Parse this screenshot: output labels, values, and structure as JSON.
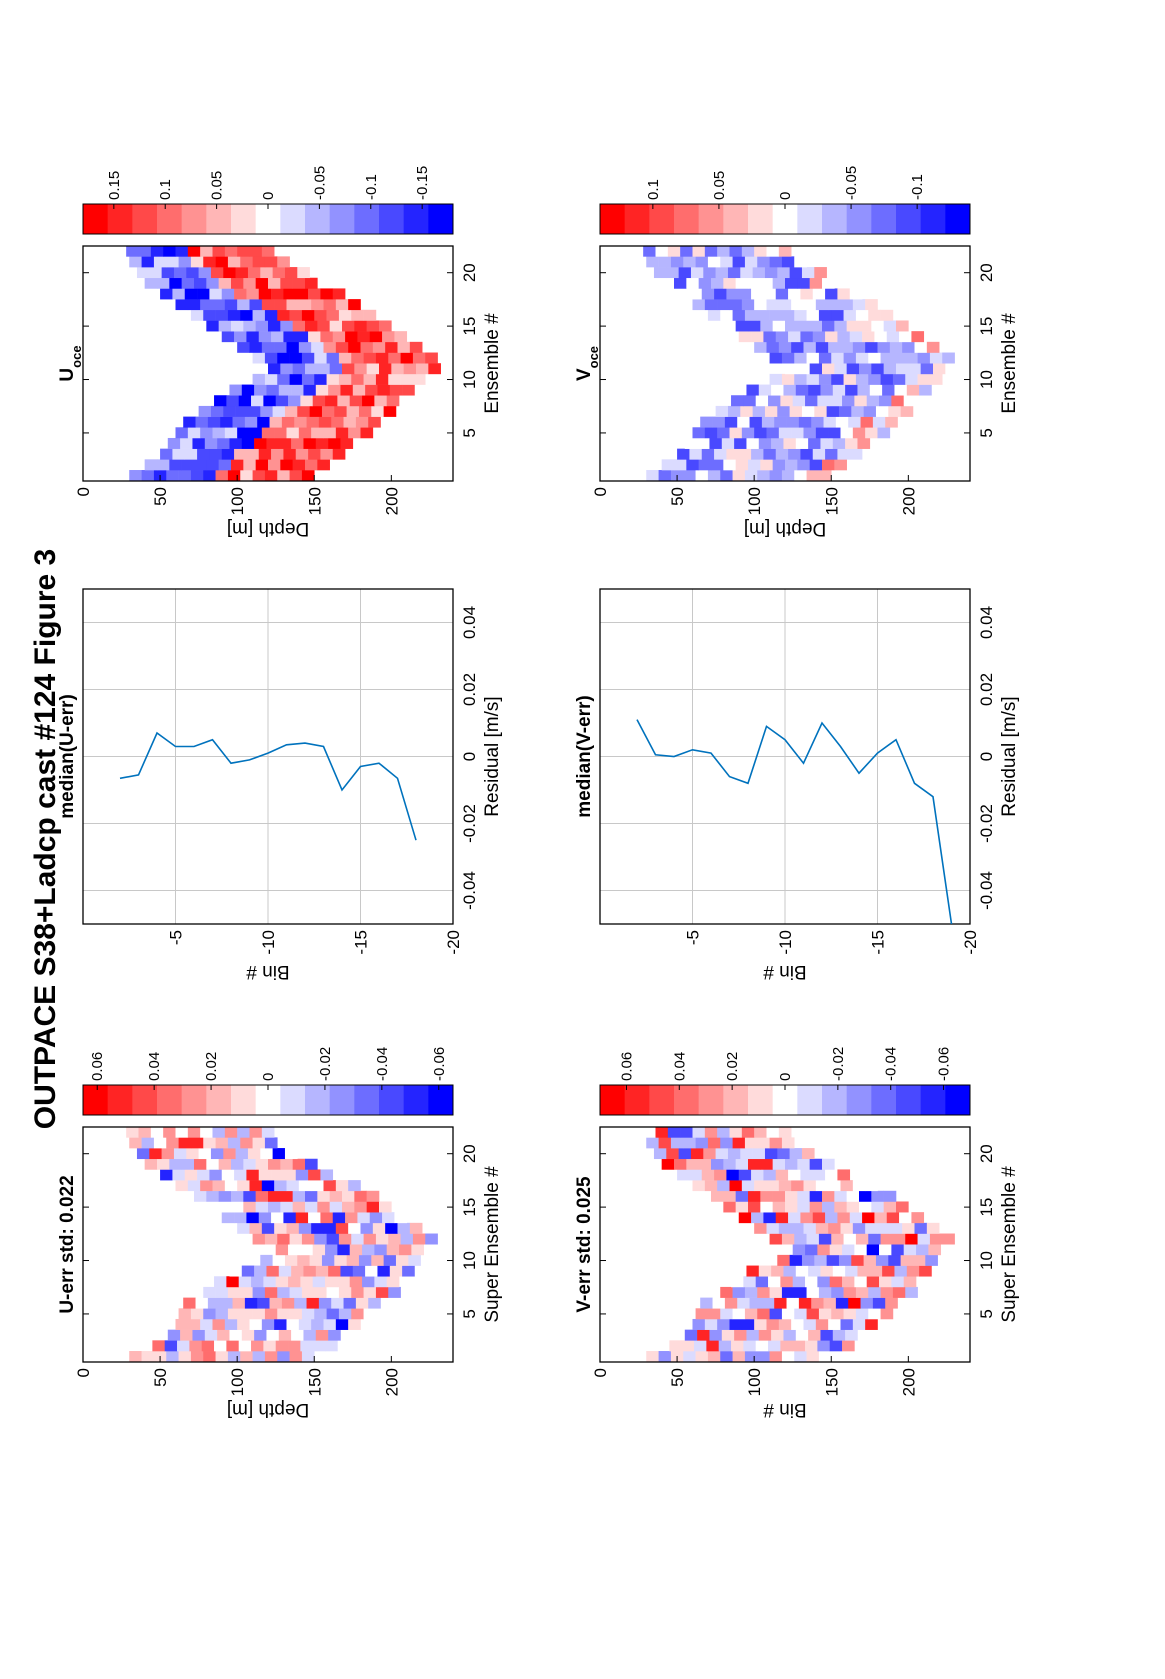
{
  "figure": {
    "title": "OUTPACE S38+Ladcp cast #124  Figure 3"
  },
  "colors": {
    "red_end": "#ff0000",
    "blue_end": "#0000ff",
    "line": "#0072bd",
    "grid": "#c8c8c8"
  },
  "chart_data": [
    {
      "type": "heatmap",
      "name": "U-err",
      "title": "U-err std: 0.022",
      "xlabel": "Super Ensemble #",
      "ylabel": "Depth [m]",
      "xlim": [
        0.5,
        22.5
      ],
      "ylim": [
        0,
        240
      ],
      "xticks": [
        "5",
        "10",
        "15",
        "20"
      ],
      "yticks": [
        "0",
        "50",
        "100",
        "150",
        "200"
      ],
      "colorbar": {
        "min": -0.065,
        "max": 0.065,
        "ticks": [
          "0.06",
          "0.04",
          "0.02",
          "0",
          "-0.02",
          "-0.04",
          "-0.06"
        ]
      },
      "depth_profile": {
        "top": [
          30,
          45,
          55,
          60,
          62,
          65,
          78,
          85,
          95,
          115,
          125,
          110,
          100,
          90,
          80,
          72,
          60,
          50,
          40,
          35,
          30,
          28
        ],
        "bottom": [
          150,
          160,
          165,
          175,
          185,
          190,
          200,
          205,
          210,
          215,
          220,
          225,
          215,
          205,
          195,
          185,
          175,
          160,
          145,
          135,
          125,
          120
        ]
      },
      "std": 0.022
    },
    {
      "type": "line",
      "name": "median(U-err)",
      "title": "median(U-err)",
      "xlabel": "Residual [m/s]",
      "ylabel": "Bin #",
      "xlim": [
        -0.05,
        0.05
      ],
      "ylim": [
        -20,
        0
      ],
      "xticks": [
        "-0.04",
        "-0.02",
        "0",
        "0.02",
        "0.04"
      ],
      "yticks": [
        "-5",
        "-10",
        "-15",
        "-20"
      ],
      "series": [
        {
          "x": [
            -0.0065,
            -0.0055,
            0.007,
            0.003,
            0.003,
            0.005,
            -0.002,
            -0.001,
            0.001,
            0.0035,
            0.004,
            0.003,
            -0.01,
            -0.003,
            -0.002,
            -0.0065,
            -0.025
          ],
          "y": [
            -2,
            -3,
            -4,
            -5,
            -6,
            -7,
            -8,
            -9,
            -10,
            -11,
            -12,
            -13,
            -14,
            -15,
            -16,
            -17,
            -18
          ]
        }
      ]
    },
    {
      "type": "heatmap",
      "name": "Uoce",
      "title": "U",
      "title_sub": "oce",
      "xlabel": "Ensemble #",
      "ylabel": "Depth [m]",
      "xlim": [
        0.5,
        22.5
      ],
      "ylim": [
        0,
        240
      ],
      "xticks": [
        "5",
        "10",
        "15",
        "20"
      ],
      "yticks": [
        "0",
        "50",
        "100",
        "150",
        "200"
      ],
      "colorbar": {
        "min": -0.18,
        "max": 0.18,
        "ticks": [
          "0.15",
          "0.1",
          "0.05",
          "0",
          "-0.05",
          "-0.1",
          "-0.15"
        ]
      },
      "depth_profile": {
        "top": [
          30,
          40,
          50,
          55,
          60,
          65,
          75,
          85,
          95,
          110,
          120,
          110,
          100,
          90,
          80,
          70,
          60,
          50,
          40,
          35,
          30,
          28
        ],
        "bottom": [
          150,
          160,
          165,
          175,
          185,
          190,
          200,
          205,
          212,
          220,
          225,
          228,
          220,
          210,
          200,
          190,
          180,
          165,
          150,
          140,
          128,
          120
        ]
      }
    },
    {
      "type": "heatmap",
      "name": "V-err",
      "title": "V-err std: 0.025",
      "xlabel": "Super Ensemble #",
      "ylabel": "Bin #",
      "xlim": [
        0.5,
        22.5
      ],
      "ylim": [
        0,
        240
      ],
      "xticks": [
        "5",
        "10",
        "15",
        "20"
      ],
      "yticks": [
        "0",
        "50",
        "100",
        "150",
        "200"
      ],
      "colorbar": {
        "min": -0.07,
        "max": 0.07,
        "ticks": [
          "0.06",
          "0.04",
          "0.02",
          "0",
          "-0.02",
          "-0.04",
          "-0.06"
        ]
      },
      "depth_profile": {
        "top": [
          30,
          45,
          55,
          60,
          62,
          65,
          78,
          85,
          95,
          115,
          125,
          110,
          100,
          90,
          80,
          72,
          60,
          50,
          40,
          35,
          30,
          28
        ],
        "bottom": [
          150,
          160,
          165,
          175,
          185,
          190,
          200,
          205,
          210,
          215,
          220,
          225,
          215,
          205,
          195,
          185,
          175,
          160,
          145,
          135,
          125,
          120
        ]
      },
      "std": 0.025
    },
    {
      "type": "line",
      "name": "median(V-err)",
      "title": "median(V-err)",
      "xlabel": "Residual [m/s]",
      "ylabel": "Bin #",
      "xlim": [
        -0.05,
        0.05
      ],
      "ylim": [
        -20,
        0
      ],
      "xticks": [
        "-0.04",
        "-0.02",
        "0",
        "0.02",
        "0.04"
      ],
      "yticks": [
        "-5",
        "-10",
        "-15",
        "-20"
      ],
      "series": [
        {
          "x": [
            0.011,
            0.0005,
            0.0,
            0.002,
            0.001,
            -0.006,
            -0.008,
            0.009,
            0.005,
            -0.002,
            0.01,
            0.003,
            -0.005,
            0.001,
            0.005,
            -0.008,
            -0.012,
            -0.05
          ],
          "y": [
            -2,
            -3,
            -4,
            -5,
            -6,
            -7,
            -8,
            -9,
            -10,
            -11,
            -12,
            -13,
            -14,
            -15,
            -16,
            -17,
            -18,
            -19
          ]
        }
      ]
    },
    {
      "type": "heatmap",
      "name": "Voce",
      "title": "V",
      "title_sub": "oce",
      "xlabel": "Ensemble #",
      "ylabel": "Depth [m]",
      "xlim": [
        0.5,
        22.5
      ],
      "ylim": [
        0,
        240
      ],
      "xticks": [
        "5",
        "10",
        "15",
        "20"
      ],
      "yticks": [
        "0",
        "50",
        "100",
        "150",
        "200"
      ],
      "colorbar": {
        "min": -0.14,
        "max": 0.14,
        "ticks": [
          "0.1",
          "0.05",
          "0",
          "-0.05",
          "-0.1"
        ]
      },
      "depth_profile": {
        "top": [
          30,
          40,
          50,
          55,
          60,
          65,
          75,
          85,
          95,
          110,
          120,
          110,
          100,
          90,
          80,
          70,
          60,
          50,
          40,
          35,
          30,
          28
        ],
        "bottom": [
          150,
          160,
          165,
          175,
          185,
          190,
          200,
          205,
          212,
          220,
          225,
          228,
          220,
          210,
          200,
          190,
          180,
          165,
          150,
          140,
          128,
          120
        ]
      }
    }
  ]
}
